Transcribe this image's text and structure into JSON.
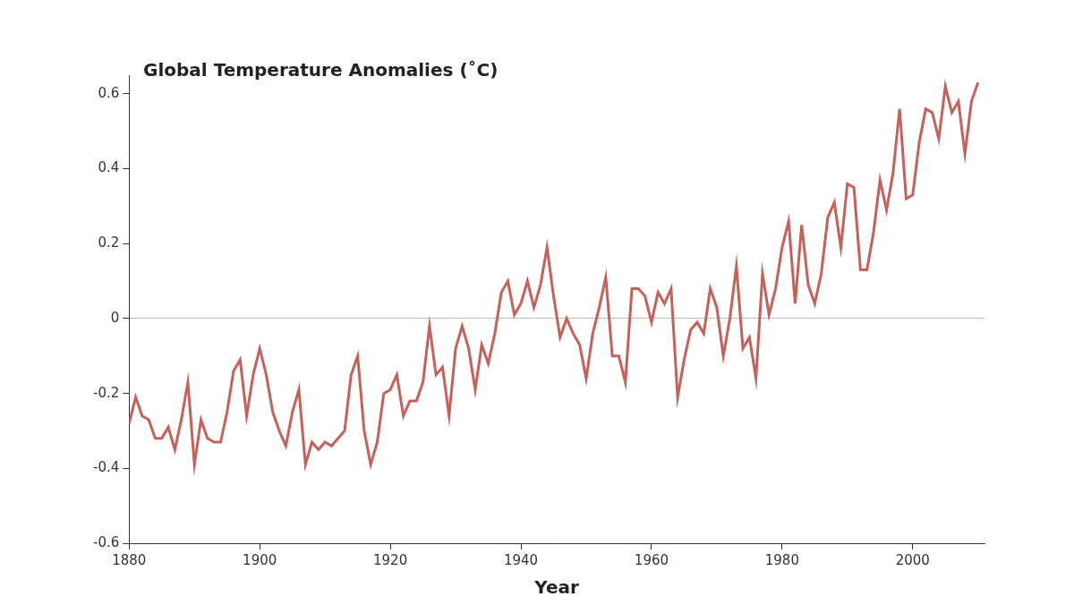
{
  "chart_data": {
    "type": "line",
    "title": "Global Temperature Anomalies (˚C)",
    "x_label": "Year",
    "x": [
      1880,
      1881,
      1882,
      1883,
      1884,
      1885,
      1886,
      1887,
      1888,
      1889,
      1890,
      1891,
      1892,
      1893,
      1894,
      1895,
      1896,
      1897,
      1898,
      1899,
      1900,
      1901,
      1902,
      1903,
      1904,
      1905,
      1906,
      1907,
      1908,
      1909,
      1910,
      1911,
      1912,
      1913,
      1914,
      1915,
      1916,
      1917,
      1918,
      1919,
      1920,
      1921,
      1922,
      1923,
      1924,
      1925,
      1926,
      1927,
      1928,
      1929,
      1930,
      1931,
      1932,
      1933,
      1934,
      1935,
      1936,
      1937,
      1938,
      1939,
      1940,
      1941,
      1942,
      1943,
      1944,
      1945,
      1946,
      1947,
      1948,
      1949,
      1950,
      1951,
      1952,
      1953,
      1954,
      1955,
      1956,
      1957,
      1958,
      1959,
      1960,
      1961,
      1962,
      1963,
      1964,
      1965,
      1966,
      1967,
      1968,
      1969,
      1970,
      1971,
      1972,
      1973,
      1974,
      1975,
      1976,
      1977,
      1978,
      1979,
      1980,
      1981,
      1982,
      1983,
      1984,
      1985,
      1986,
      1987,
      1988,
      1989,
      1990,
      1991,
      1992,
      1993,
      1994,
      1995,
      1996,
      1997,
      1998,
      1999,
      2000,
      2001,
      2002,
      2003,
      2004,
      2005,
      2006,
      2007,
      2008,
      2009,
      2010
    ],
    "values": [
      -0.28,
      -0.21,
      -0.26,
      -0.27,
      -0.32,
      -0.32,
      -0.29,
      -0.35,
      -0.27,
      -0.17,
      -0.39,
      -0.27,
      -0.32,
      -0.33,
      -0.33,
      -0.25,
      -0.14,
      -0.11,
      -0.26,
      -0.15,
      -0.08,
      -0.15,
      -0.25,
      -0.3,
      -0.34,
      -0.25,
      -0.19,
      -0.39,
      -0.33,
      -0.35,
      -0.33,
      -0.34,
      -0.32,
      -0.3,
      -0.15,
      -0.1,
      -0.3,
      -0.39,
      -0.33,
      -0.2,
      -0.19,
      -0.15,
      -0.26,
      -0.22,
      -0.22,
      -0.17,
      -0.02,
      -0.15,
      -0.13,
      -0.26,
      -0.08,
      -0.02,
      -0.08,
      -0.19,
      -0.07,
      -0.12,
      -0.04,
      0.07,
      0.1,
      0.01,
      0.04,
      0.1,
      0.03,
      0.09,
      0.19,
      0.06,
      -0.05,
      0.0,
      -0.04,
      -0.07,
      -0.16,
      -0.04,
      0.03,
      0.11,
      -0.1,
      -0.1,
      -0.17,
      0.08,
      0.08,
      0.06,
      -0.01,
      0.07,
      0.04,
      0.08,
      -0.21,
      -0.11,
      -0.03,
      -0.01,
      -0.04,
      0.08,
      0.03,
      -0.1,
      0.0,
      0.14,
      -0.08,
      -0.05,
      -0.16,
      0.12,
      0.01,
      0.08,
      0.19,
      0.26,
      0.04,
      0.25,
      0.09,
      0.04,
      0.12,
      0.27,
      0.31,
      0.19,
      0.36,
      0.35,
      0.13,
      0.13,
      0.23,
      0.37,
      0.29,
      0.39,
      0.56,
      0.32,
      0.33,
      0.47,
      0.56,
      0.55,
      0.48,
      0.62,
      0.55,
      0.58,
      0.44,
      0.58,
      0.63
    ],
    "color": "#c8605a",
    "xlim": [
      1880,
      2011
    ],
    "xticks": [
      1880,
      1900,
      1920,
      1940,
      1960,
      1980,
      2000
    ],
    "ylim": [
      -0.6,
      0.65
    ],
    "yticks": [
      -0.6,
      -0.4,
      -0.2,
      0,
      0.2,
      0.4,
      0.6
    ],
    "grid": false
  }
}
